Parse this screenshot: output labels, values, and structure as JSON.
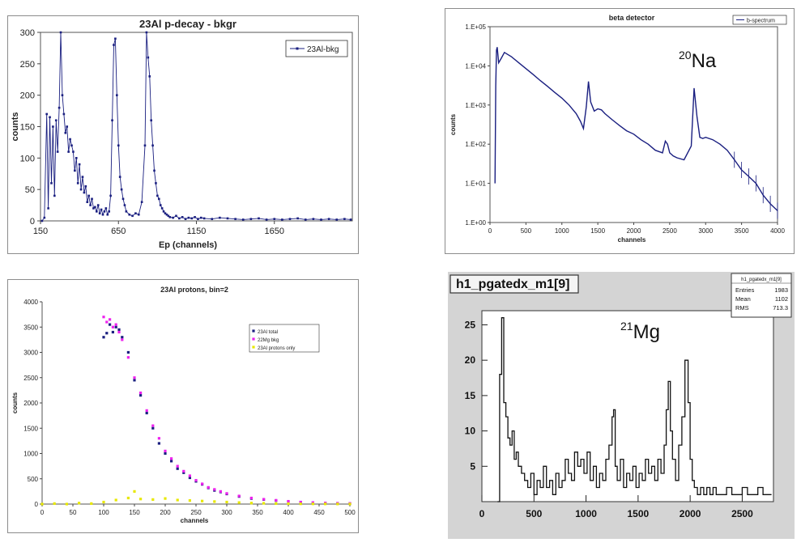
{
  "chart_data": [
    {
      "id": "al23",
      "type": "line",
      "title": "23Al p-decay - bkgr",
      "xlabel": "Ep (channels)",
      "ylabel": "counts",
      "xlim": [
        150,
        2150
      ],
      "ylim": [
        0,
        300
      ],
      "xticks": [
        150,
        650,
        1150,
        1650
      ],
      "yticks": [
        0,
        50,
        100,
        150,
        200,
        250,
        300
      ],
      "grid": false,
      "legend": "top-right",
      "color": "#1a1f80",
      "series": [
        {
          "name": "23Al-bkg",
          "x": [
            160,
            175,
            190,
            200,
            210,
            220,
            230,
            240,
            250,
            260,
            270,
            280,
            290,
            300,
            310,
            320,
            330,
            340,
            350,
            360,
            370,
            380,
            390,
            400,
            410,
            420,
            430,
            440,
            450,
            460,
            470,
            480,
            490,
            500,
            510,
            520,
            530,
            540,
            550,
            560,
            570,
            580,
            590,
            600,
            610,
            620,
            630,
            640,
            650,
            660,
            670,
            680,
            690,
            700,
            720,
            740,
            760,
            780,
            800,
            820,
            830,
            840,
            850,
            860,
            870,
            880,
            890,
            900,
            910,
            920,
            930,
            940,
            950,
            960,
            970,
            980,
            1000,
            1020,
            1040,
            1060,
            1080,
            1100,
            1120,
            1140,
            1160,
            1180,
            1200,
            1250,
            1300,
            1350,
            1400,
            1450,
            1500,
            1550,
            1600,
            1650,
            1700,
            1750,
            1800,
            1850,
            1900,
            1950,
            2000,
            2050,
            2100,
            2140
          ],
          "y": [
            0,
            5,
            170,
            20,
            165,
            60,
            150,
            40,
            160,
            110,
            180,
            300,
            200,
            170,
            140,
            150,
            110,
            130,
            120,
            110,
            80,
            100,
            60,
            90,
            50,
            70,
            45,
            55,
            30,
            40,
            25,
            35,
            20,
            22,
            15,
            25,
            12,
            18,
            10,
            15,
            20,
            10,
            15,
            40,
            160,
            280,
            290,
            200,
            120,
            70,
            50,
            35,
            25,
            15,
            10,
            8,
            12,
            10,
            30,
            120,
            300,
            260,
            230,
            160,
            120,
            80,
            60,
            40,
            35,
            25,
            20,
            15,
            12,
            10,
            8,
            6,
            5,
            8,
            4,
            6,
            3,
            5,
            4,
            6,
            3,
            5,
            4,
            3,
            5,
            4,
            3,
            2,
            3,
            4,
            2,
            3,
            2,
            3,
            4,
            2,
            3,
            2,
            3,
            2,
            3,
            2
          ]
        }
      ]
    },
    {
      "id": "na20",
      "type": "line",
      "title": "beta detector",
      "xlabel": "channels",
      "ylabel": "counts",
      "yscale": "log",
      "xlim": [
        0,
        4000
      ],
      "ylim": [
        1,
        100000
      ],
      "xticks": [
        "0",
        "500",
        "1000",
        "1500",
        "2000",
        "2500",
        "3000",
        "3500",
        "4000"
      ],
      "yticks": [
        "1.E+00",
        "1.E+01",
        "1.E+02",
        "1.E+03",
        "1.E+04",
        "1.E+05"
      ],
      "grid": false,
      "legend": "top-right",
      "color": "#1a1f80",
      "series": [
        {
          "name": "b-spectrum",
          "x": [
            70,
            80,
            90,
            100,
            120,
            160,
            200,
            300,
            400,
            500,
            600,
            700,
            800,
            900,
            1000,
            1100,
            1200,
            1260,
            1300,
            1340,
            1370,
            1400,
            1450,
            1500,
            1550,
            1600,
            1700,
            1800,
            1900,
            2000,
            2100,
            2200,
            2300,
            2400,
            2440,
            2470,
            2500,
            2550,
            2600,
            2700,
            2800,
            2840,
            2880,
            2920,
            2960,
            3000,
            3100,
            3200,
            3300,
            3400,
            3500,
            3600,
            3700,
            3800,
            3900,
            4000
          ],
          "y": [
            10,
            3000,
            25000,
            30000,
            12000,
            16000,
            22000,
            17000,
            12000,
            8500,
            6000,
            4200,
            3000,
            2100,
            1500,
            1000,
            600,
            380,
            250,
            900,
            4000,
            1200,
            700,
            800,
            750,
            600,
            420,
            300,
            220,
            180,
            130,
            100,
            70,
            60,
            120,
            100,
            60,
            50,
            45,
            40,
            90,
            2700,
            500,
            150,
            140,
            150,
            130,
            100,
            70,
            40,
            22,
            15,
            10,
            5,
            3,
            2
          ]
        }
      ],
      "annotations": [
        {
          "mass": "20",
          "element": "Na"
        }
      ]
    },
    {
      "id": "protons23",
      "type": "scatter",
      "title": "23Al protons, bin=2",
      "xlabel": "channels",
      "ylabel": "counts",
      "xlim": [
        0,
        500
      ],
      "ylim": [
        0,
        4000
      ],
      "xticks": [
        0,
        50,
        100,
        150,
        200,
        250,
        300,
        350,
        400,
        450,
        500
      ],
      "yticks": [
        0,
        500,
        1000,
        1500,
        2000,
        2500,
        3000,
        3500,
        4000
      ],
      "grid": false,
      "legend": "top-right",
      "series": [
        {
          "name": "23Al total",
          "color": "#1a1f80",
          "x": [
            100,
            105,
            110,
            115,
            120,
            125,
            130,
            140,
            150,
            160,
            170,
            180,
            190,
            200,
            210,
            220,
            230,
            240,
            250,
            260,
            270,
            280,
            290,
            300,
            320,
            340,
            360,
            380,
            400,
            420,
            440,
            460,
            480,
            500
          ],
          "y": [
            3300,
            3380,
            3550,
            3400,
            3500,
            3450,
            3300,
            3000,
            2450,
            2150,
            1800,
            1500,
            1200,
            1000,
            850,
            700,
            620,
            520,
            450,
            390,
            320,
            270,
            240,
            200,
            150,
            110,
            90,
            70,
            50,
            35,
            25,
            20,
            15,
            10
          ]
        },
        {
          "name": "22Mg bkg",
          "color": "#ee22ee",
          "x": [
            100,
            105,
            110,
            115,
            120,
            125,
            130,
            140,
            150,
            160,
            170,
            180,
            190,
            200,
            210,
            220,
            230,
            240,
            250,
            260,
            270,
            280,
            290,
            300,
            320,
            340,
            360,
            380,
            400,
            420,
            440,
            460,
            480,
            500
          ],
          "y": [
            3700,
            3600,
            3650,
            3500,
            3550,
            3400,
            3250,
            2900,
            2500,
            2200,
            1850,
            1550,
            1300,
            1050,
            900,
            750,
            650,
            560,
            470,
            400,
            330,
            290,
            250,
            210,
            160,
            120,
            95,
            75,
            55,
            40,
            30,
            22,
            16,
            12
          ]
        },
        {
          "name": "23Al protons only",
          "color": "#e8e800",
          "x": [
            0,
            20,
            40,
            60,
            80,
            100,
            120,
            140,
            150,
            160,
            180,
            200,
            220,
            240,
            260,
            280,
            300,
            320,
            340,
            360,
            380,
            400,
            420,
            440,
            460,
            480,
            500
          ],
          "y": [
            0,
            10,
            0,
            20,
            10,
            40,
            80,
            120,
            250,
            100,
            90,
            110,
            80,
            70,
            60,
            50,
            40,
            30,
            20,
            15,
            10,
            8,
            5,
            4,
            3,
            2,
            1
          ]
        }
      ]
    },
    {
      "id": "mg21",
      "type": "line",
      "title": "h1_pgatedx_m1[9]",
      "xlim": [
        0,
        2800
      ],
      "ylim": [
        0,
        27
      ],
      "xticks": [
        0,
        500,
        1000,
        1500,
        2000,
        2500
      ],
      "yticks": [
        5,
        10,
        15,
        20,
        25
      ],
      "grid": false,
      "legend": "",
      "color": "#111111",
      "stats": {
        "title": "h1_pgatedx_m1[9]",
        "rows": [
          {
            "label": "Entries",
            "value": "1983"
          },
          {
            "label": "Mean",
            "value": "1102"
          },
          {
            "label": "RMS",
            "value": "713.3"
          }
        ]
      },
      "annotations": [
        {
          "mass": "21",
          "element": "Mg"
        }
      ],
      "series": [
        {
          "x": [
            150,
            170,
            190,
            210,
            230,
            250,
            270,
            290,
            310,
            330,
            350,
            380,
            410,
            440,
            470,
            500,
            530,
            560,
            590,
            620,
            650,
            680,
            710,
            740,
            770,
            800,
            830,
            860,
            890,
            920,
            950,
            980,
            1010,
            1040,
            1070,
            1100,
            1130,
            1160,
            1190,
            1220,
            1250,
            1265,
            1280,
            1300,
            1330,
            1360,
            1390,
            1420,
            1450,
            1480,
            1510,
            1540,
            1570,
            1600,
            1630,
            1660,
            1690,
            1720,
            1750,
            1770,
            1790,
            1810,
            1830,
            1860,
            1890,
            1920,
            1950,
            1980,
            2000,
            2020,
            2040,
            2070,
            2100,
            2130,
            2160,
            2190,
            2220,
            2250,
            2300,
            2350,
            2400,
            2450,
            2500,
            2550,
            2600,
            2650,
            2700,
            2750
          ],
          "y": [
            0,
            18,
            26,
            14,
            12,
            9,
            8,
            10,
            6,
            7,
            5,
            4,
            3,
            2,
            4,
            1,
            3,
            2,
            5,
            2,
            3,
            1,
            4,
            2,
            3,
            6,
            4,
            3,
            7,
            5,
            6,
            4,
            7,
            3,
            5,
            2,
            4,
            3,
            6,
            8,
            12,
            13,
            5,
            3,
            6,
            2,
            4,
            3,
            5,
            2,
            4,
            3,
            6,
            4,
            5,
            3,
            6,
            4,
            8,
            13,
            17,
            10,
            6,
            3,
            8,
            12,
            20,
            14,
            6,
            3,
            2,
            1,
            2,
            1,
            2,
            1,
            2,
            1,
            1,
            2,
            1,
            1,
            2,
            1,
            1,
            2,
            1,
            1
          ]
        }
      ]
    }
  ]
}
